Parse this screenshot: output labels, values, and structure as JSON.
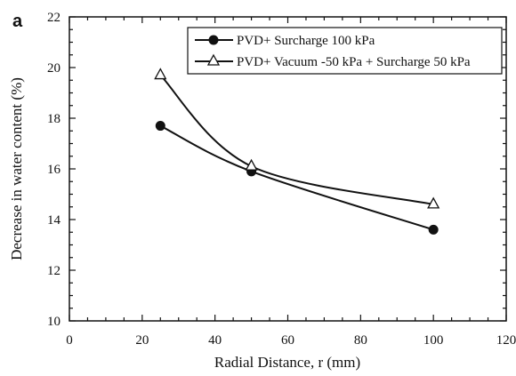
{
  "panel_label": "a",
  "chart_data": {
    "type": "line",
    "xlabel": "Radial Distance, r (mm)",
    "ylabel": "Decrease in water content (%)",
    "xlim": [
      0,
      120
    ],
    "ylim": [
      10,
      22
    ],
    "xticks": [
      0,
      20,
      40,
      60,
      80,
      100,
      120
    ],
    "yticks": [
      10,
      12,
      14,
      16,
      18,
      20,
      22
    ],
    "grid": false,
    "legend_position": "top-right",
    "series": [
      {
        "name": "PVD+ Surcharge 100 kPa",
        "marker": "filled-circle",
        "x": [
          25,
          50,
          100
        ],
        "y": [
          17.7,
          15.9,
          13.6
        ]
      },
      {
        "name": "PVD+ Vacuum -50 kPa + Surcharge 50 kPa",
        "marker": "open-triangle",
        "x": [
          25,
          50,
          100
        ],
        "y": [
          19.7,
          16.1,
          14.6
        ]
      }
    ]
  }
}
